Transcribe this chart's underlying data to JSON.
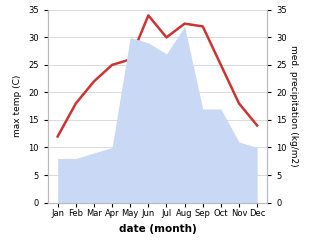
{
  "months": [
    "Jan",
    "Feb",
    "Mar",
    "Apr",
    "May",
    "Jun",
    "Jul",
    "Aug",
    "Sep",
    "Oct",
    "Nov",
    "Dec"
  ],
  "temperature": [
    12,
    18,
    22,
    25,
    26,
    34,
    30,
    32.5,
    32,
    25,
    18,
    14
  ],
  "precipitation": [
    8,
    8,
    9,
    10,
    30,
    29,
    27,
    32,
    17,
    17,
    11,
    10
  ],
  "temp_color": "#cc3333",
  "precip_fill_color": "#c8d8f5",
  "ylabel_left": "max temp (C)",
  "ylabel_right": "med. precipitation (kg/m2)",
  "xlabel": "date (month)",
  "ylim": [
    0,
    35
  ],
  "yticks": [
    0,
    5,
    10,
    15,
    20,
    25,
    30,
    35
  ],
  "temp_linewidth": 1.8,
  "spine_color": "#bbbbbb",
  "grid_color": "#cccccc"
}
